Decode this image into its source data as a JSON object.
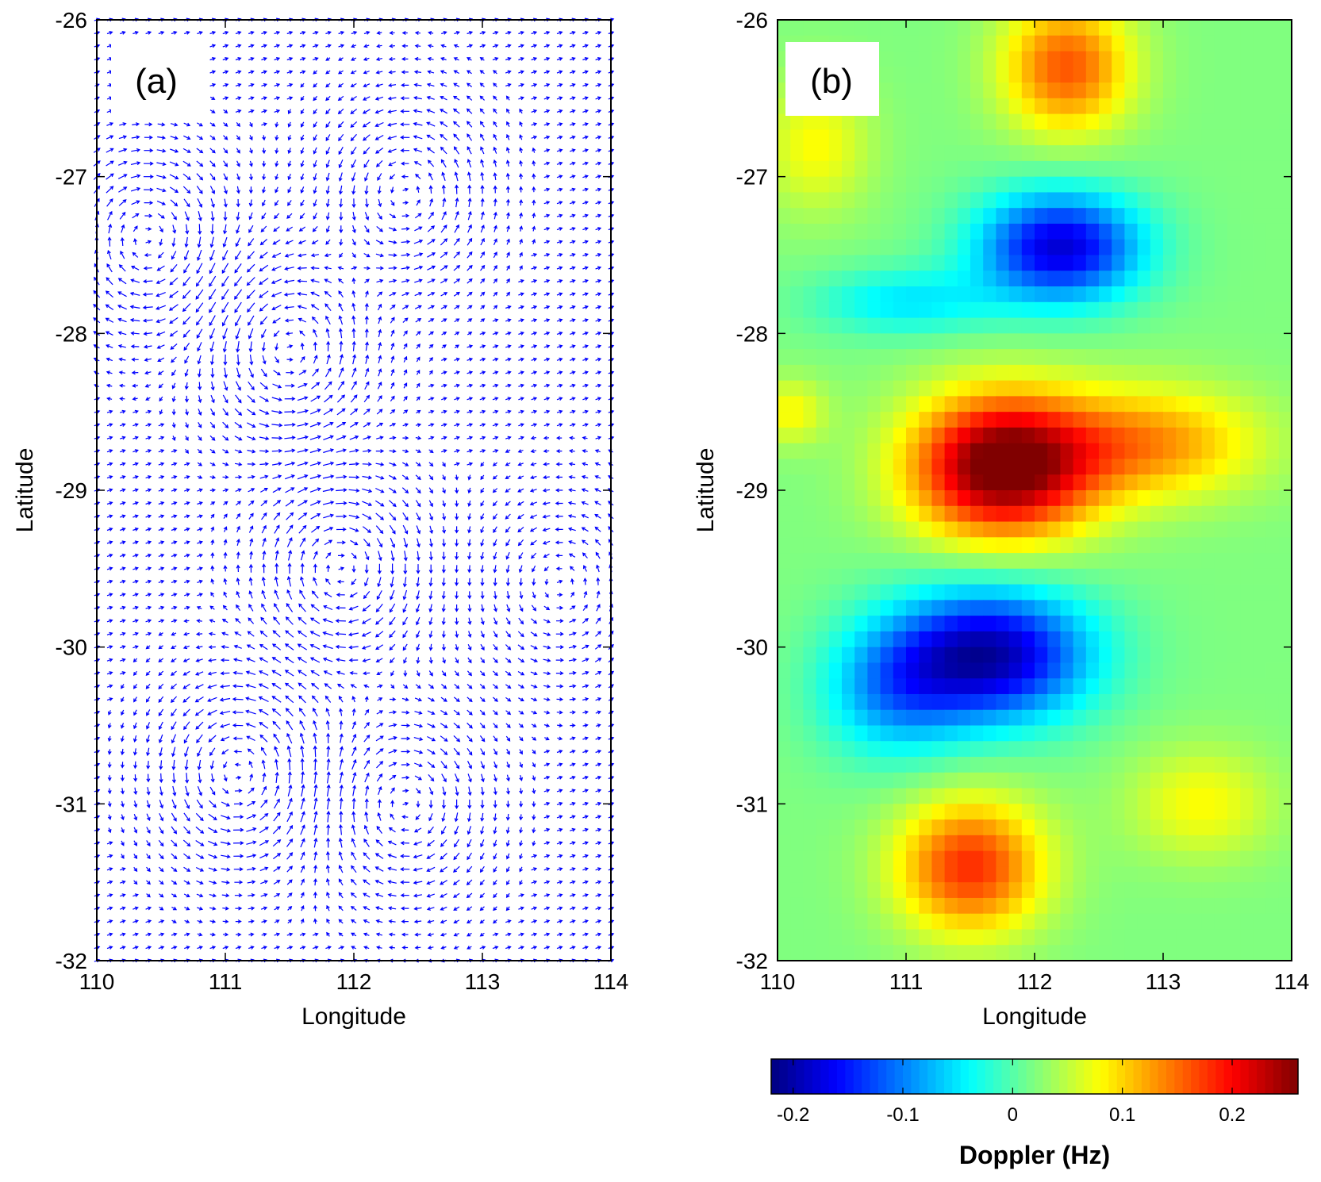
{
  "chart_data": [
    {
      "type": "quiver",
      "panel_label": "(a)",
      "xlabel": "Longitude",
      "ylabel": "Latitude",
      "xlim": [
        110,
        114
      ],
      "ylim": [
        -32,
        -26
      ],
      "xticks": [
        110,
        111,
        112,
        113,
        114
      ],
      "yticks": [
        -26,
        -27,
        -28,
        -29,
        -30,
        -31,
        -32
      ],
      "arrow_color": "#0000ff",
      "grid": false,
      "vortices": [
        {
          "lon": 110.4,
          "lat": -27.4,
          "sense": -1,
          "strength": 1.0
        },
        {
          "lon": 112.4,
          "lat": -27.1,
          "sense": 1,
          "strength": 0.9
        },
        {
          "lon": 111.5,
          "lat": -28.1,
          "sense": 1,
          "strength": 1.1
        },
        {
          "lon": 111.9,
          "lat": -29.5,
          "sense": -1,
          "strength": 1.1
        },
        {
          "lon": 111.1,
          "lat": -30.8,
          "sense": 1,
          "strength": 1.1
        },
        {
          "lon": 112.4,
          "lat": -31.0,
          "sense": -1,
          "strength": 0.9
        },
        {
          "lon": 113.6,
          "lat": -29.6,
          "sense": 1,
          "strength": 0.6
        }
      ]
    },
    {
      "type": "heatmap",
      "panel_label": "(b)",
      "xlabel": "Longitude",
      "ylabel": "Latitude",
      "xlim": [
        110,
        114
      ],
      "ylim": [
        -32,
        -26
      ],
      "xticks": [
        110,
        111,
        112,
        113,
        114
      ],
      "yticks": [
        -26,
        -27,
        -28,
        -29,
        -30,
        -31,
        -32
      ],
      "colormap": "jet",
      "clim": [
        -0.22,
        0.26
      ],
      "grid": false,
      "features": [
        {
          "lon": 111.75,
          "lat": -28.85,
          "value": 0.26,
          "sx": 0.5,
          "sy": 0.32
        },
        {
          "lon": 112.9,
          "lat": -28.7,
          "value": 0.11,
          "sx": 0.6,
          "sy": 0.25
        },
        {
          "lon": 111.65,
          "lat": -30.05,
          "value": -0.22,
          "sx": 0.55,
          "sy": 0.3
        },
        {
          "lon": 110.9,
          "lat": -30.3,
          "value": -0.09,
          "sx": 0.4,
          "sy": 0.3
        },
        {
          "lon": 112.2,
          "lat": -27.45,
          "value": -0.2,
          "sx": 0.45,
          "sy": 0.25
        },
        {
          "lon": 111.0,
          "lat": -27.8,
          "value": -0.07,
          "sx": 0.5,
          "sy": 0.15
        },
        {
          "lon": 112.25,
          "lat": -26.3,
          "value": 0.14,
          "sx": 0.35,
          "sy": 0.3
        },
        {
          "lon": 111.5,
          "lat": -31.4,
          "value": 0.16,
          "sx": 0.4,
          "sy": 0.3
        },
        {
          "lon": 113.3,
          "lat": -31.0,
          "value": 0.06,
          "sx": 0.4,
          "sy": 0.25
        },
        {
          "lon": 110.3,
          "lat": -26.8,
          "value": 0.06,
          "sx": 0.3,
          "sy": 0.3
        },
        {
          "lon": 110.1,
          "lat": -28.5,
          "value": 0.06,
          "sx": 0.2,
          "sy": 0.15
        }
      ],
      "colorbar": {
        "label": "Doppler (Hz)",
        "ticks": [
          -0.2,
          -0.1,
          0,
          0.1,
          0.2
        ],
        "tick_labels": [
          "-0.2",
          "-0.1",
          "0",
          "0.1",
          "0.2"
        ],
        "range": [
          -0.22,
          0.26
        ]
      }
    }
  ]
}
